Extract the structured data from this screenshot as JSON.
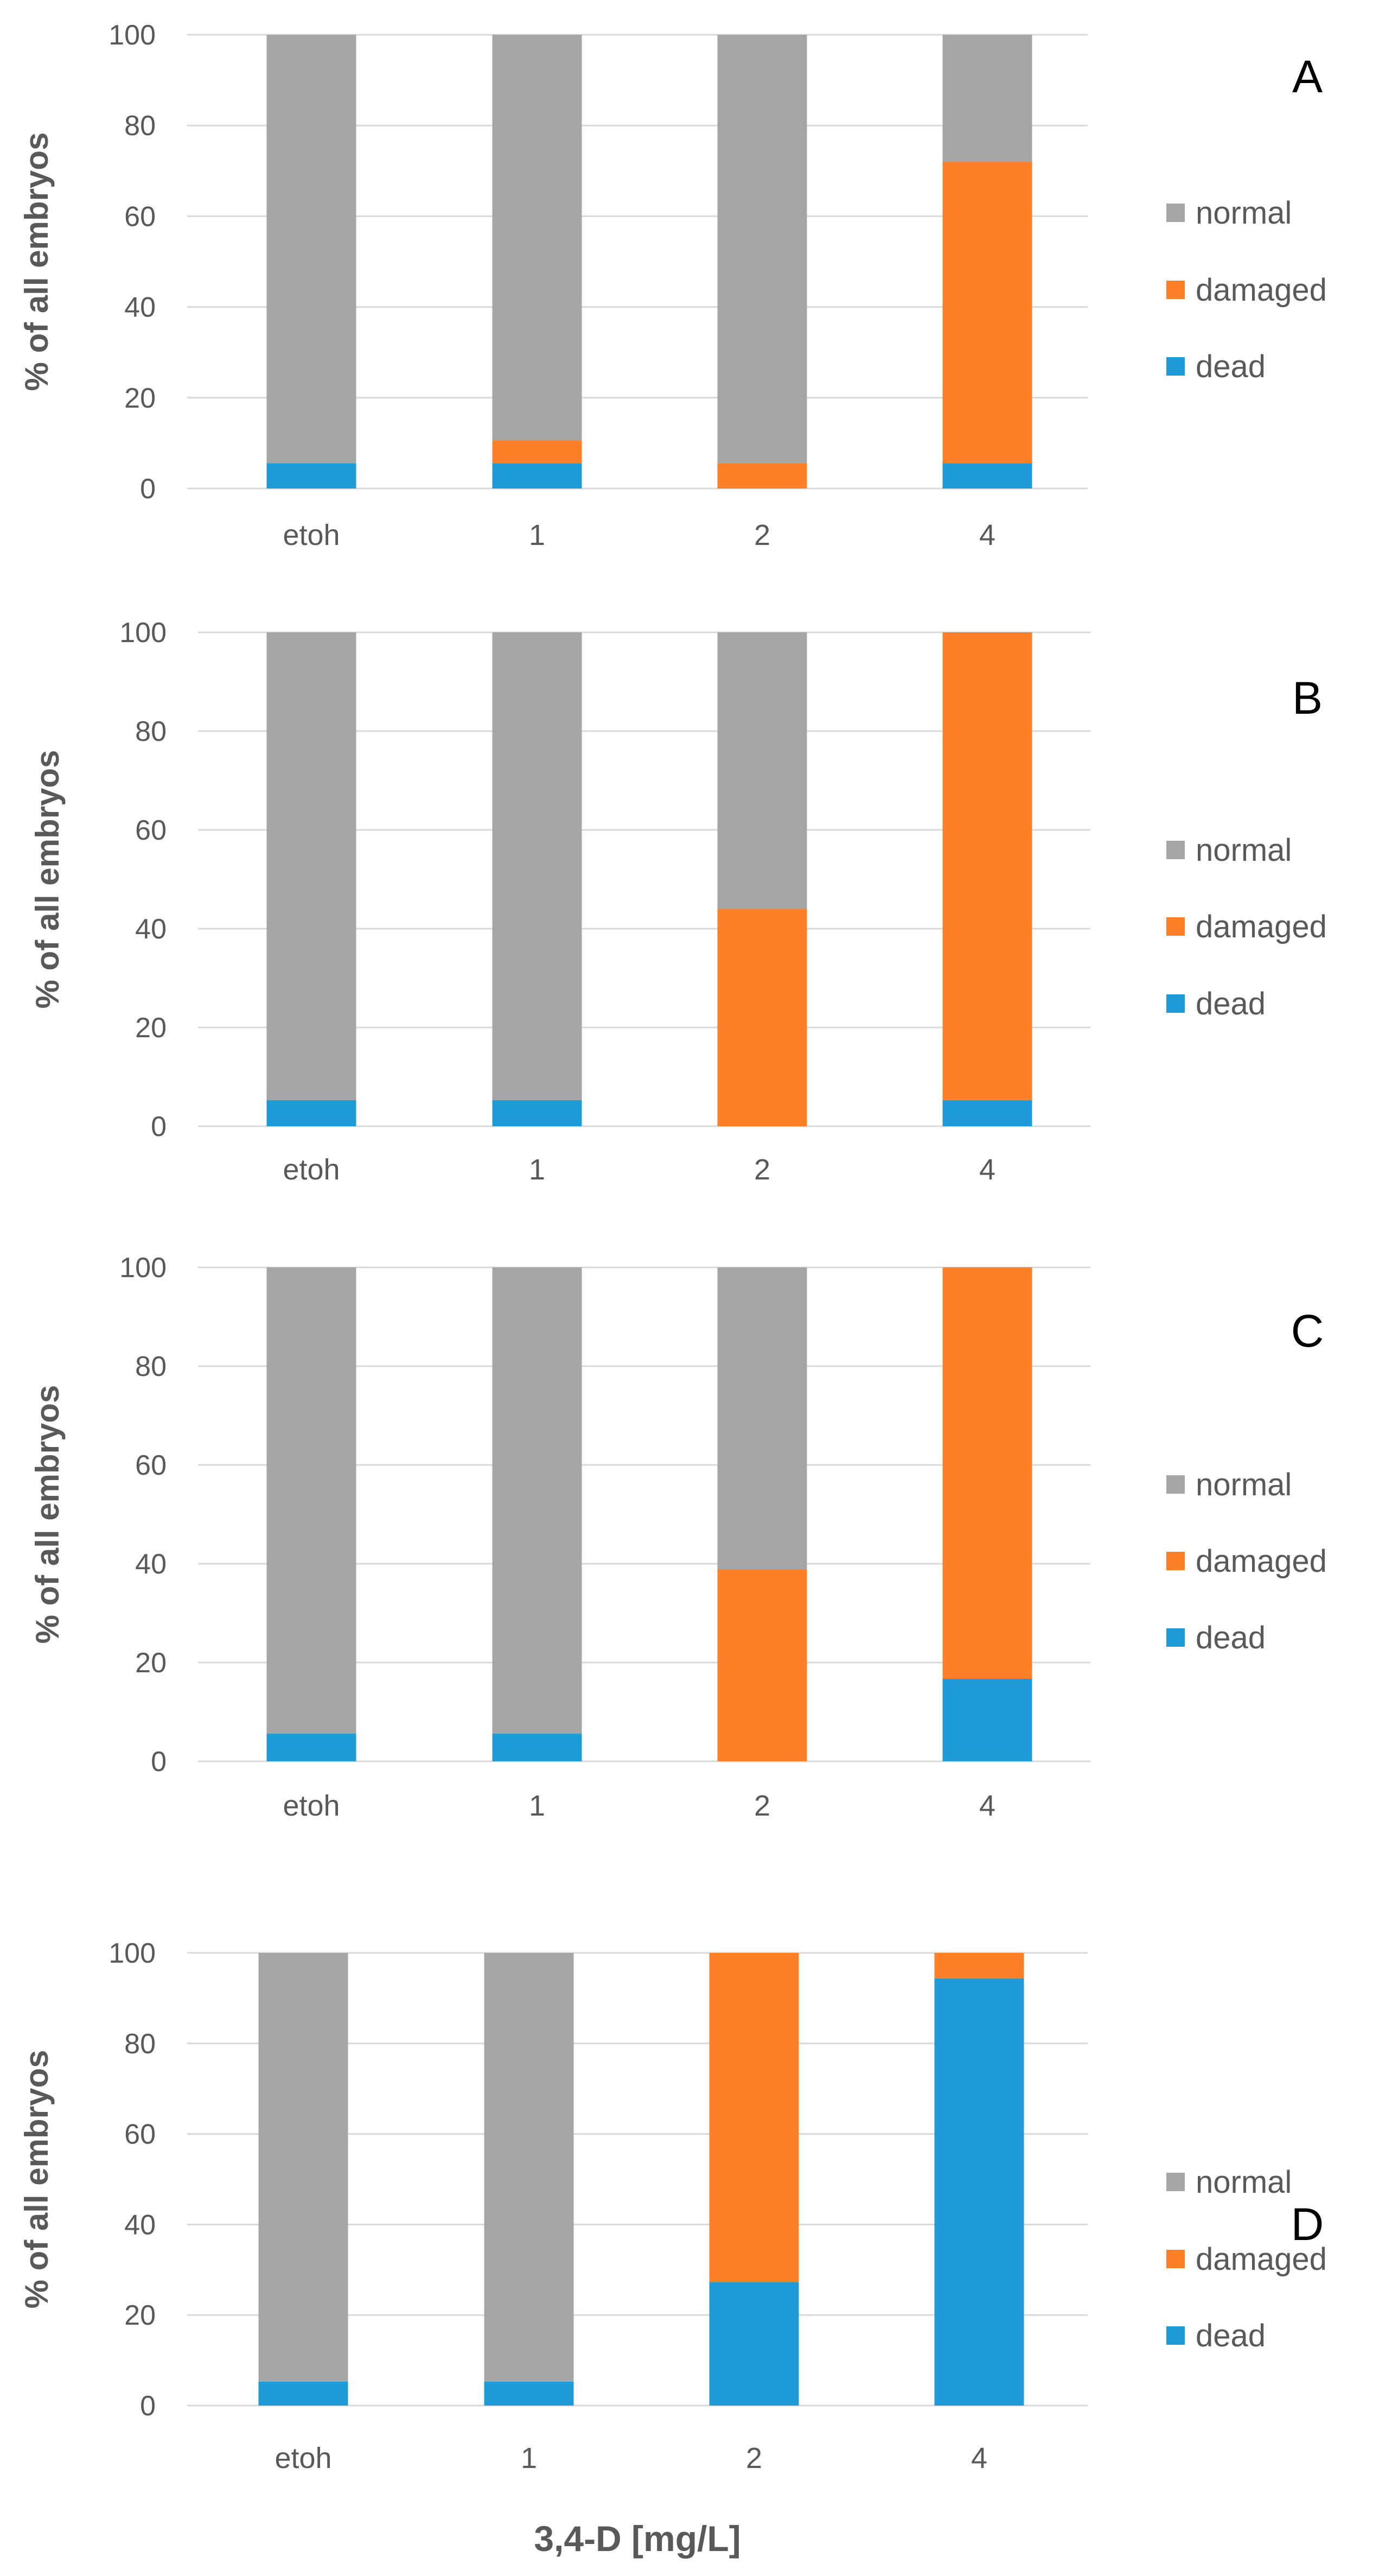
{
  "chart_data": [
    {
      "panel": "A",
      "type": "bar",
      "stacked": true,
      "ylabel": "% of all embryos",
      "xlabel": "",
      "ylim": [
        0,
        100
      ],
      "yticks": [
        0,
        20,
        40,
        60,
        80,
        100
      ],
      "categories": [
        "etoh",
        "1",
        "2",
        "4"
      ],
      "series": [
        {
          "name": "dead",
          "color": "#1f9bd7",
          "values": [
            5.6,
            5.6,
            0,
            5.6
          ]
        },
        {
          "name": "damaged",
          "color": "#fd7f27",
          "values": [
            0,
            5,
            5.6,
            66.4
          ]
        },
        {
          "name": "normal",
          "color": "#a5a5a5",
          "values": [
            94.4,
            89.4,
            94.4,
            28
          ]
        }
      ],
      "legend": [
        "normal",
        "damaged",
        "dead"
      ],
      "grid": true
    },
    {
      "panel": "B",
      "type": "bar",
      "stacked": true,
      "ylabel": "% of all embryos",
      "xlabel": "",
      "ylim": [
        0,
        100
      ],
      "yticks": [
        0,
        20,
        40,
        60,
        80,
        100
      ],
      "categories": [
        "etoh",
        "1",
        "2",
        "4"
      ],
      "series": [
        {
          "name": "dead",
          "color": "#1f9bd7",
          "values": [
            5.3,
            5.3,
            0,
            5.3
          ]
        },
        {
          "name": "damaged",
          "color": "#fd7f27",
          "values": [
            0,
            0,
            44,
            94.7
          ]
        },
        {
          "name": "normal",
          "color": "#a5a5a5",
          "values": [
            94.7,
            94.7,
            56,
            0
          ]
        }
      ],
      "legend": [
        "normal",
        "damaged",
        "dead"
      ],
      "grid": true
    },
    {
      "panel": "C",
      "type": "bar",
      "stacked": true,
      "ylabel": "% of all embryos",
      "xlabel": "",
      "ylim": [
        0,
        100
      ],
      "yticks": [
        0,
        20,
        40,
        60,
        80,
        100
      ],
      "categories": [
        "etoh",
        "1",
        "2",
        "4"
      ],
      "series": [
        {
          "name": "dead",
          "color": "#1f9bd7",
          "values": [
            5.6,
            5.6,
            0,
            16.7
          ]
        },
        {
          "name": "damaged",
          "color": "#fd7f27",
          "values": [
            0,
            0,
            38.9,
            83.3
          ]
        },
        {
          "name": "normal",
          "color": "#a5a5a5",
          "values": [
            94.4,
            94.4,
            61.1,
            0
          ]
        }
      ],
      "legend": [
        "normal",
        "damaged",
        "dead"
      ],
      "grid": true
    },
    {
      "panel": "D",
      "type": "bar",
      "stacked": true,
      "ylabel": "% of all embryos",
      "xlabel": "3,4-D [mg/L]",
      "ylim": [
        0,
        100
      ],
      "yticks": [
        0,
        20,
        40,
        60,
        80,
        100
      ],
      "categories": [
        "etoh",
        "1",
        "2",
        "4"
      ],
      "series": [
        {
          "name": "dead",
          "color": "#1f9bd7",
          "values": [
            5.3,
            5.3,
            27.3,
            94.4
          ]
        },
        {
          "name": "damaged",
          "color": "#fd7f27",
          "values": [
            0,
            0,
            72.7,
            5.6
          ]
        },
        {
          "name": "normal",
          "color": "#a5a5a5",
          "values": [
            94.7,
            94.7,
            0,
            0
          ]
        }
      ],
      "legend": [
        "normal",
        "damaged",
        "dead"
      ],
      "grid": true
    }
  ]
}
